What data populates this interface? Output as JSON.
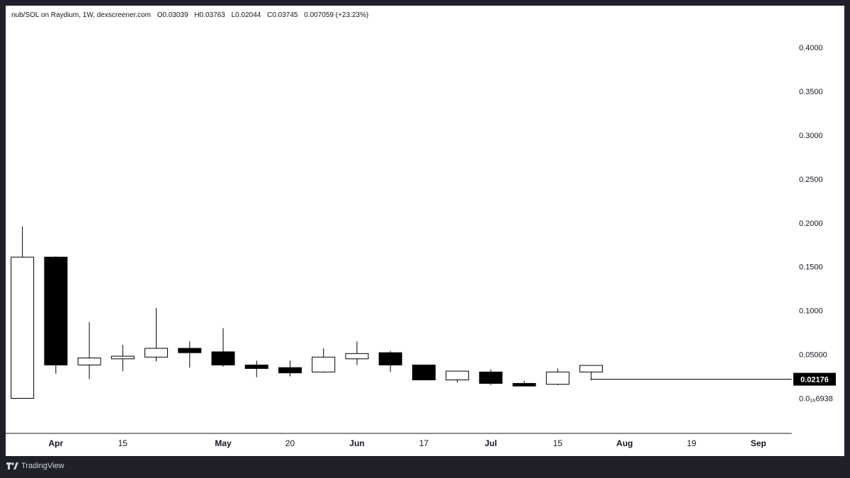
{
  "header": {
    "symbol": "nub/SOL on Raydium, 1W, dexscreener.com",
    "open": "O0.03039",
    "high": "H0.03763",
    "low": "L0.02044",
    "close": "C0.03745",
    "change": "0.007059 (+23.23%)"
  },
  "price_label": "0.02176",
  "footer": {
    "brand": "TradingView"
  },
  "colors": {
    "up_fill": "#ffffff",
    "down_fill": "#000000",
    "outline": "#000000",
    "frame": "#1f2029",
    "background": "#ffffff"
  },
  "chart_data": {
    "type": "candlestick",
    "y_tick_labels": [
      "0.4000",
      "0.3500",
      "0.3000",
      "0.2500",
      "0.2000",
      "0.1500",
      "0.1000",
      "0.05000",
      "0.0₁₆6938"
    ],
    "y_ticks": [
      0.4,
      0.35,
      0.3,
      0.25,
      0.2,
      0.15,
      0.1,
      0.05,
      0.0
    ],
    "ylim": [
      -0.04,
      0.43
    ],
    "x_tick_labels": [
      "Apr",
      "15",
      "May",
      "20",
      "Jun",
      "17",
      "Jul",
      "15",
      "Aug",
      "19",
      "Sep"
    ],
    "x_tick_index": [
      1.0,
      3.0,
      6.0,
      8.0,
      10.0,
      12.0,
      14.0,
      16.0,
      18.0,
      20.0,
      22.0
    ],
    "x_range": [
      -0.5,
      23.0
    ],
    "last_price": 0.02176,
    "candles": [
      {
        "o": 0.0,
        "h": 0.196,
        "l": 0.0,
        "c": 0.161
      },
      {
        "o": 0.161,
        "h": 0.162,
        "l": 0.028,
        "c": 0.038
      },
      {
        "o": 0.038,
        "h": 0.087,
        "l": 0.022,
        "c": 0.046
      },
      {
        "o": 0.045,
        "h": 0.061,
        "l": 0.031,
        "c": 0.048
      },
      {
        "o": 0.047,
        "h": 0.103,
        "l": 0.042,
        "c": 0.057
      },
      {
        "o": 0.057,
        "h": 0.065,
        "l": 0.035,
        "c": 0.052
      },
      {
        "o": 0.053,
        "h": 0.08,
        "l": 0.036,
        "c": 0.038
      },
      {
        "o": 0.038,
        "h": 0.043,
        "l": 0.024,
        "c": 0.034
      },
      {
        "o": 0.035,
        "h": 0.043,
        "l": 0.025,
        "c": 0.029
      },
      {
        "o": 0.03,
        "h": 0.057,
        "l": 0.029,
        "c": 0.047
      },
      {
        "o": 0.045,
        "h": 0.065,
        "l": 0.038,
        "c": 0.051
      },
      {
        "o": 0.052,
        "h": 0.054,
        "l": 0.03,
        "c": 0.038
      },
      {
        "o": 0.038,
        "h": 0.038,
        "l": 0.021,
        "c": 0.021
      },
      {
        "o": 0.021,
        "h": 0.031,
        "l": 0.018,
        "c": 0.031
      },
      {
        "o": 0.03,
        "h": 0.033,
        "l": 0.015,
        "c": 0.017
      },
      {
        "o": 0.017,
        "h": 0.02,
        "l": 0.014,
        "c": 0.014
      },
      {
        "o": 0.016,
        "h": 0.034,
        "l": 0.015,
        "c": 0.03
      },
      {
        "o": 0.03,
        "h": 0.038,
        "l": 0.0204,
        "c": 0.0375
      }
    ]
  }
}
